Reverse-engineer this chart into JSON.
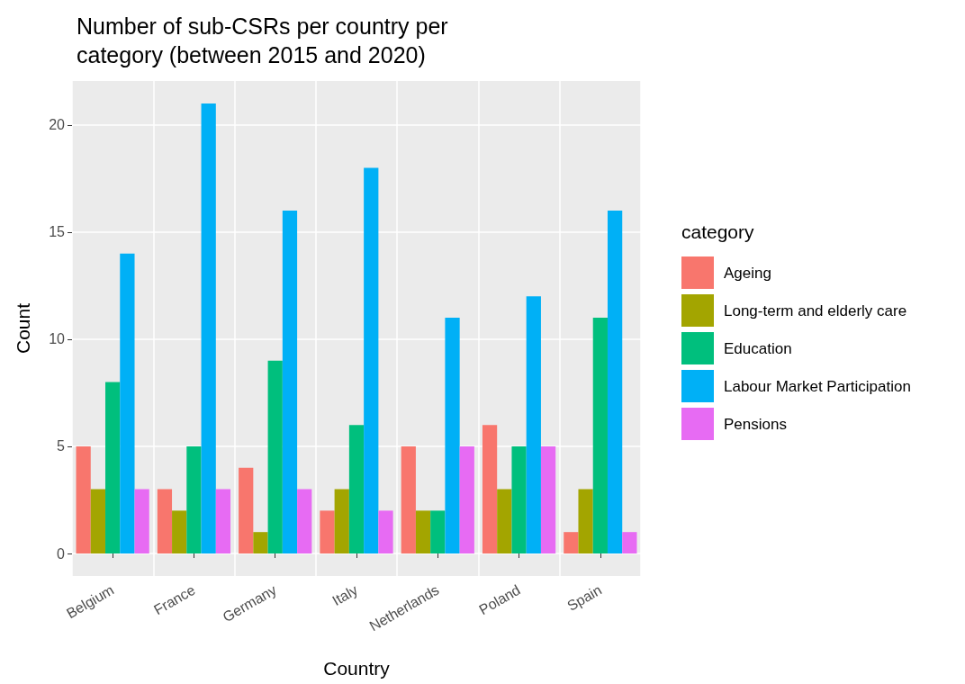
{
  "chart_data": {
    "type": "bar",
    "title": "Number of sub-CSRs per country per\ncategory (between 2015 and 2020)",
    "xlabel": "Country",
    "ylabel": "Count",
    "legend_title": "category",
    "categories": [
      "Belgium",
      "France",
      "Germany",
      "Italy",
      "Netherlands",
      "Poland",
      "Spain"
    ],
    "series": [
      {
        "name": "Ageing",
        "color": "#f8766d",
        "values": [
          5,
          3,
          4,
          2,
          5,
          6,
          1
        ]
      },
      {
        "name": "Long-term and elderly care",
        "color": "#a3a500",
        "values": [
          3,
          2,
          1,
          3,
          2,
          3,
          3
        ]
      },
      {
        "name": "Education",
        "color": "#00bf7d",
        "values": [
          8,
          5,
          9,
          6,
          2,
          5,
          11
        ]
      },
      {
        "name": "Labour Market Participation",
        "color": "#00b0f6",
        "values": [
          14,
          21,
          16,
          18,
          11,
          12,
          16
        ]
      },
      {
        "name": "Pensions",
        "color": "#e76bf3",
        "values": [
          3,
          3,
          3,
          2,
          5,
          5,
          1
        ]
      }
    ],
    "ylim": [
      -1.05,
      22.05
    ],
    "yticks": [
      0,
      5,
      10,
      15,
      20
    ],
    "grid": true,
    "legend": "right"
  }
}
